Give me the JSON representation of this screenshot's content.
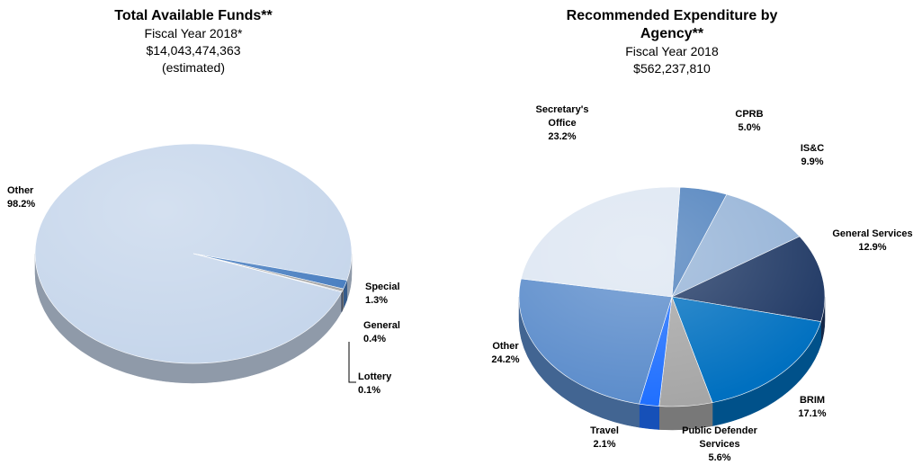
{
  "chart_data": [
    {
      "type": "pie",
      "title": "Total Available Funds**",
      "subtitle": [
        "Fiscal Year 2018*",
        "$14,043,474,363",
        "(estimated)"
      ],
      "categories": [
        "Other",
        "Special",
        "General",
        "Lottery"
      ],
      "values": [
        98.2,
        1.3,
        0.4,
        0.1
      ],
      "value_labels": [
        "98.2%",
        "1.3%",
        "0.4%",
        "0.1%"
      ],
      "colors": [
        "#c6d6eb",
        "#4a7fc1",
        "#a6a6a6",
        "#1f3864"
      ]
    },
    {
      "type": "pie",
      "title": "Recommended Expenditure by Agency**",
      "subtitle": [
        "Fiscal Year 2018",
        "$562,237,810"
      ],
      "categories": [
        "CPRB",
        "IS&C",
        "General Services",
        "BRIM",
        "Public Defender Services",
        "Travel",
        "Other",
        "Secretary's Office"
      ],
      "values": [
        5.0,
        9.9,
        12.9,
        17.1,
        5.6,
        2.1,
        24.2,
        23.2
      ],
      "value_labels": [
        "5.0%",
        "9.9%",
        "12.9%",
        "17.1%",
        "5.6%",
        "2.1%",
        "24.2%",
        "23.2%"
      ],
      "colors": [
        "#4f81bd",
        "#95b3d7",
        "#1f3864",
        "#0070c0",
        "#a6a6a6",
        "#1f6fff",
        "#5b8ccb",
        "#dde6f2"
      ]
    }
  ]
}
